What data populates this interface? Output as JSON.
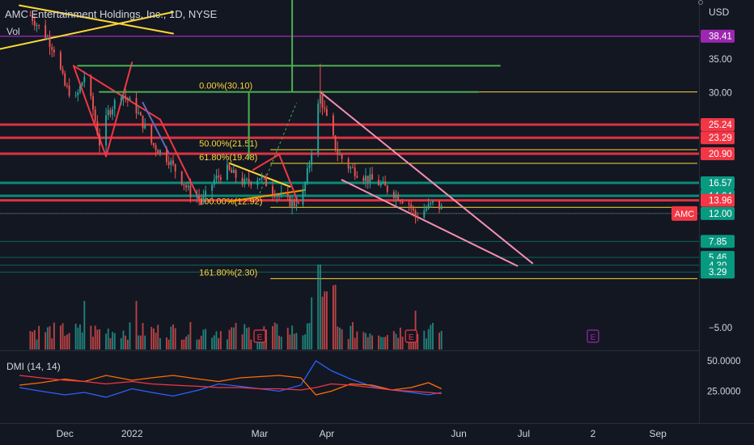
{
  "header": {
    "title": "AMC Entertainment Holdings, Inc., 1D, NYSE",
    "currency": "USD",
    "volume_label": "Vol",
    "dmi_label": "DMI (14, 14)"
  },
  "chart_data": [
    {
      "type": "candlestick",
      "title": "AMC Entertainment Holdings, Inc., 1D, NYSE",
      "xlabel": "",
      "ylabel": "",
      "ylim": [
        -6.5,
        43
      ],
      "x_tick_labels": [
        {
          "label": "Dec",
          "date": "2021-12-01"
        },
        {
          "label": "2022",
          "date": "2022-01-01"
        },
        {
          "label": "Mar",
          "date": "2022-03-01"
        },
        {
          "label": "Apr",
          "date": "2022-04-01"
        },
        {
          "label": "Jun",
          "date": "2022-06-01"
        },
        {
          "label": "Jul",
          "date": "2022-07-01"
        },
        {
          "label": "2",
          "date": "2022-08-02"
        },
        {
          "label": "Sep",
          "date": "2022-09-01"
        }
      ],
      "y_ticks": [
        35.0,
        30.0,
        25.0,
        -5.0
      ],
      "y_tick_labels": [
        "35.00",
        "30.00",
        "25.00",
        "−5.00"
      ],
      "price_labels": [
        {
          "value": 38.41,
          "text": "38.41",
          "color": "#9c27b0"
        },
        {
          "value": 25.24,
          "text": "25.24",
          "color": "#f23645"
        },
        {
          "value": 23.29,
          "text": "23.29",
          "color": "#f23645"
        },
        {
          "value": 20.9,
          "text": "20.90",
          "color": "#f23645"
        },
        {
          "value": 16.57,
          "text": "16.57",
          "color": "#089981"
        },
        {
          "value": 14.64,
          "text": "14.64",
          "color": "#089981"
        },
        {
          "value": 13.96,
          "text": "13.96",
          "color": "#f23645"
        },
        {
          "value": 12.0,
          "text": "12.00",
          "color": "#089981"
        },
        {
          "value": 7.85,
          "text": "7.85",
          "color": "#089981"
        },
        {
          "value": 5.46,
          "text": "5.46",
          "color": "#089981"
        },
        {
          "value": 4.3,
          "text": "4.30",
          "color": "#089981"
        },
        {
          "value": 3.29,
          "text": "3.29",
          "color": "#089981"
        }
      ],
      "symbol_badge": {
        "text": "AMC",
        "color": "#f23645"
      },
      "horizontal_levels": [
        {
          "value": 38.41,
          "color": "#9c27b0"
        },
        {
          "value": 25.24,
          "color": "#f23645"
        },
        {
          "value": 23.29,
          "color": "#f23645"
        },
        {
          "value": 20.9,
          "color": "#f23645"
        },
        {
          "value": 16.57,
          "color": "#089981"
        },
        {
          "value": 14.64,
          "color": "#089981"
        },
        {
          "value": 13.96,
          "color": "#f23645"
        }
      ],
      "fibonacci": [
        {
          "label": "0.00%(30.10)",
          "value": 30.1
        },
        {
          "label": "50.00%(21.51)",
          "value": 21.51
        },
        {
          "label": "61.80%(19.48)",
          "value": 19.48
        },
        {
          "label": "100.00%(12.92)",
          "value": 12.92
        },
        {
          "label": "161.80%(2.30)",
          "value": 2.3
        }
      ],
      "price_path": [
        {
          "date": "2021-11-15",
          "close": 41.5
        },
        {
          "date": "2021-11-22",
          "close": 38.5
        },
        {
          "date": "2021-11-26",
          "close": 36.5
        },
        {
          "date": "2021-12-01",
          "close": 31.0
        },
        {
          "date": "2021-12-06",
          "close": 29.0
        },
        {
          "date": "2021-12-10",
          "close": 32.5
        },
        {
          "date": "2021-12-14",
          "close": 27.5
        },
        {
          "date": "2021-12-17",
          "close": 22.5
        },
        {
          "date": "2021-12-21",
          "close": 27.0
        },
        {
          "date": "2021-12-27",
          "close": 30.0
        },
        {
          "date": "2022-01-03",
          "close": 27.5
        },
        {
          "date": "2022-01-10",
          "close": 22.5
        },
        {
          "date": "2022-01-18",
          "close": 20.0
        },
        {
          "date": "2022-01-25",
          "close": 16.5
        },
        {
          "date": "2022-01-28",
          "close": 15.0
        },
        {
          "date": "2022-02-03",
          "close": 14.0
        },
        {
          "date": "2022-02-08",
          "close": 17.0
        },
        {
          "date": "2022-02-14",
          "close": 18.5
        },
        {
          "date": "2022-02-22",
          "close": 16.5
        },
        {
          "date": "2022-03-01",
          "close": 17.5
        },
        {
          "date": "2022-03-07",
          "close": 15.5
        },
        {
          "date": "2022-03-14",
          "close": 13.8
        },
        {
          "date": "2022-03-17",
          "close": 13.5
        },
        {
          "date": "2022-03-21",
          "close": 15.0
        },
        {
          "date": "2022-03-24",
          "close": 19.5
        },
        {
          "date": "2022-03-28",
          "close": 28.0
        },
        {
          "date": "2022-03-29",
          "close": 29.5
        },
        {
          "date": "2022-04-01",
          "close": 26.0
        },
        {
          "date": "2022-04-06",
          "close": 21.0
        },
        {
          "date": "2022-04-11",
          "close": 19.0
        },
        {
          "date": "2022-04-18",
          "close": 17.5
        },
        {
          "date": "2022-04-25",
          "close": 16.5
        },
        {
          "date": "2022-05-02",
          "close": 15.0
        },
        {
          "date": "2022-05-09",
          "close": 13.5
        },
        {
          "date": "2022-05-12",
          "close": 11.5
        },
        {
          "date": "2022-05-16",
          "close": 12.5
        },
        {
          "date": "2022-05-20",
          "close": 13.5
        },
        {
          "date": "2022-05-24",
          "close": 12.8
        }
      ],
      "volume_markers": [
        {
          "date": "2022-03-01",
          "label": "E",
          "color": "#f23645"
        },
        {
          "date": "2022-05-10",
          "label": "E",
          "color": "#f23645"
        },
        {
          "date": "2022-08-02",
          "label": "E",
          "color": "#9c27b0"
        }
      ]
    },
    {
      "type": "line",
      "title": "DMI (14, 14)",
      "y_ticks": [
        50.0,
        25.0
      ],
      "y_tick_labels": [
        "50.0000",
        "25.0000"
      ],
      "series": [
        {
          "color": "#2962ff",
          "points": [
            {
              "date": "2021-11-10",
              "value": 28
            },
            {
              "date": "2021-11-20",
              "value": 25
            },
            {
              "date": "2021-12-01",
              "value": 22
            },
            {
              "date": "2021-12-10",
              "value": 24
            },
            {
              "date": "2021-12-20",
              "value": 20
            },
            {
              "date": "2022-01-01",
              "value": 27
            },
            {
              "date": "2022-01-10",
              "value": 24
            },
            {
              "date": "2022-01-20",
              "value": 21
            },
            {
              "date": "2022-02-01",
              "value": 26
            },
            {
              "date": "2022-02-10",
              "value": 31
            },
            {
              "date": "2022-02-20",
              "value": 29
            },
            {
              "date": "2022-03-01",
              "value": 27
            },
            {
              "date": "2022-03-10",
              "value": 25
            },
            {
              "date": "2022-03-20",
              "value": 30
            },
            {
              "date": "2022-03-27",
              "value": 50
            },
            {
              "date": "2022-04-03",
              "value": 42
            },
            {
              "date": "2022-04-12",
              "value": 35
            },
            {
              "date": "2022-04-22",
              "value": 29
            },
            {
              "date": "2022-05-01",
              "value": 26
            },
            {
              "date": "2022-05-10",
              "value": 24
            },
            {
              "date": "2022-05-18",
              "value": 22
            },
            {
              "date": "2022-05-24",
              "value": 24
            }
          ]
        },
        {
          "color": "#ff6d00",
          "points": [
            {
              "date": "2021-11-10",
              "value": 30
            },
            {
              "date": "2021-11-20",
              "value": 32
            },
            {
              "date": "2021-12-01",
              "value": 35
            },
            {
              "date": "2021-12-10",
              "value": 33
            },
            {
              "date": "2021-12-20",
              "value": 38
            },
            {
              "date": "2022-01-01",
              "value": 34
            },
            {
              "date": "2022-01-10",
              "value": 36
            },
            {
              "date": "2022-01-20",
              "value": 38
            },
            {
              "date": "2022-02-01",
              "value": 35
            },
            {
              "date": "2022-02-10",
              "value": 33
            },
            {
              "date": "2022-02-20",
              "value": 36
            },
            {
              "date": "2022-03-01",
              "value": 37
            },
            {
              "date": "2022-03-10",
              "value": 38
            },
            {
              "date": "2022-03-20",
              "value": 36
            },
            {
              "date": "2022-03-27",
              "value": 22
            },
            {
              "date": "2022-04-03",
              "value": 25
            },
            {
              "date": "2022-04-12",
              "value": 31
            },
            {
              "date": "2022-04-22",
              "value": 30
            },
            {
              "date": "2022-05-01",
              "value": 26
            },
            {
              "date": "2022-05-10",
              "value": 28
            },
            {
              "date": "2022-05-18",
              "value": 32
            },
            {
              "date": "2022-05-24",
              "value": 27
            }
          ]
        },
        {
          "color": "#f23645",
          "points": [
            {
              "date": "2021-11-10",
              "value": 38
            },
            {
              "date": "2021-11-20",
              "value": 36
            },
            {
              "date": "2021-12-01",
              "value": 34
            },
            {
              "date": "2021-12-10",
              "value": 33
            },
            {
              "date": "2021-12-20",
              "value": 31
            },
            {
              "date": "2022-01-01",
              "value": 33
            },
            {
              "date": "2022-01-10",
              "value": 31
            },
            {
              "date": "2022-01-20",
              "value": 30
            },
            {
              "date": "2022-02-01",
              "value": 29
            },
            {
              "date": "2022-02-10",
              "value": 28
            },
            {
              "date": "2022-02-20",
              "value": 28
            },
            {
              "date": "2022-03-01",
              "value": 27
            },
            {
              "date": "2022-03-10",
              "value": 27
            },
            {
              "date": "2022-03-20",
              "value": 26
            },
            {
              "date": "2022-03-27",
              "value": 28
            },
            {
              "date": "2022-04-03",
              "value": 31
            },
            {
              "date": "2022-04-12",
              "value": 30
            },
            {
              "date": "2022-04-22",
              "value": 28
            },
            {
              "date": "2022-05-01",
              "value": 26
            },
            {
              "date": "2022-05-10",
              "value": 25
            },
            {
              "date": "2022-05-18",
              "value": 24
            },
            {
              "date": "2022-05-24",
              "value": 23
            }
          ]
        }
      ]
    }
  ]
}
